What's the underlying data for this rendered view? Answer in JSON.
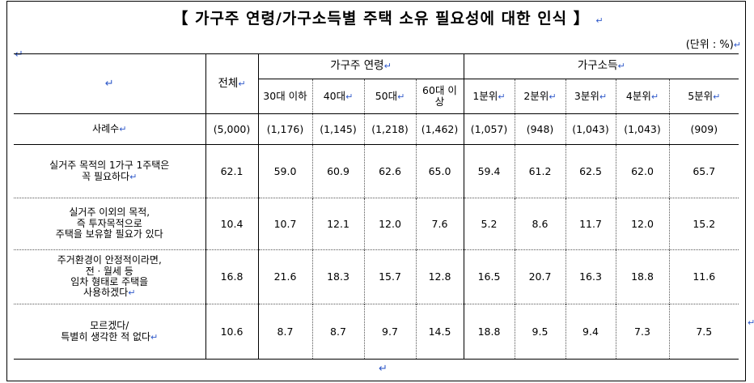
{
  "title": "【 가구주 연령/가구소득별 주택 소유 필요성에 대한 인식 】",
  "unit": "(단위 : %)",
  "return_mark": "↵",
  "header": {
    "empty_label": "↵",
    "total": "전체",
    "age_group": "가구주 연령",
    "income_group": "가구소득",
    "age_cols": [
      "30대 이하",
      "40대",
      "50대",
      "60대 이상"
    ],
    "income_cols": [
      "1분위",
      "2분위",
      "3분위",
      "4분위",
      "5분위"
    ]
  },
  "count_row": {
    "label": "사례수",
    "values": [
      "(5,000)",
      "(1,176)",
      "(1,145)",
      "(1,218)",
      "(1,462)",
      "(1,057)",
      "(948)",
      "(1,043)",
      "(1,043)",
      "(909)"
    ]
  },
  "rows": [
    {
      "label": [
        "실거주 목적의 1가구 1주택은",
        "꼭 필요하다"
      ],
      "values": [
        "62.1",
        "59.0",
        "60.9",
        "62.6",
        "65.0",
        "59.4",
        "61.2",
        "62.5",
        "62.0",
        "65.7"
      ]
    },
    {
      "label": [
        "실거주 이외의 목적,",
        "즉 투자목적으로",
        "주택을 보유할 필요가 있다"
      ],
      "values": [
        "10.4",
        "10.7",
        "12.1",
        "12.0",
        "7.6",
        "5.2",
        "8.6",
        "11.7",
        "12.0",
        "15.2"
      ]
    },
    {
      "label": [
        "주거환경이 안정적이라면,",
        "전ㆍ월세 등",
        "임차 형태로 주택을",
        "사용하겠다"
      ],
      "values": [
        "16.8",
        "21.6",
        "18.3",
        "15.7",
        "12.8",
        "16.5",
        "20.7",
        "16.3",
        "18.8",
        "11.6"
      ]
    },
    {
      "label": [
        "모르겠다/",
        "특별히 생각한 적 없다"
      ],
      "values": [
        "10.6",
        "8.7",
        "8.7",
        "9.7",
        "14.5",
        "18.8",
        "9.5",
        "9.4",
        "7.3",
        "7.5"
      ]
    }
  ]
}
